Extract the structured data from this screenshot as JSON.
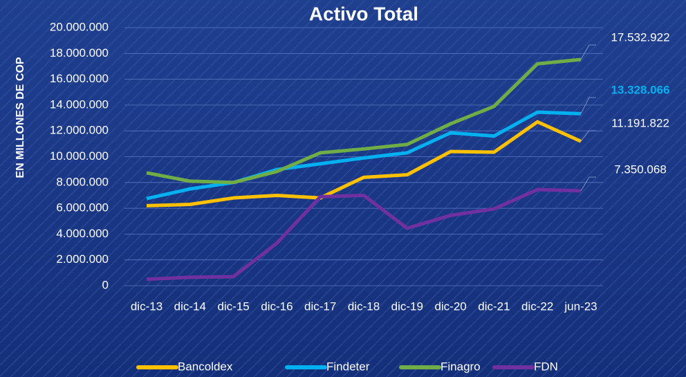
{
  "chart_data": {
    "type": "line",
    "title": "Activo Total",
    "y_label": "EN MILLONES DE COP",
    "categories": [
      "dic-13",
      "dic-14",
      "dic-15",
      "dic-16",
      "dic-17",
      "dic-18",
      "dic-19",
      "dic-20",
      "dic-21",
      "dic-22",
      "jun-23"
    ],
    "series": [
      {
        "name": "Bancoldex",
        "color": "#ffc000",
        "values": [
          6200000,
          6300000,
          6800000,
          7000000,
          6800000,
          8400000,
          8600000,
          10400000,
          10350000,
          12700000,
          11191822
        ],
        "value_labels": [
          null,
          null,
          null,
          null,
          null,
          null,
          null,
          null,
          null,
          null,
          "11.191.822"
        ]
      },
      {
        "name": "Findeter",
        "color": "#00b0f0",
        "label_color": "#00b0f0",
        "values": [
          6750000,
          7500000,
          8000000,
          9000000,
          9450000,
          9900000,
          10300000,
          11850000,
          11600000,
          13450000,
          13328066
        ],
        "value_labels": [
          null,
          null,
          null,
          null,
          null,
          null,
          null,
          null,
          null,
          null,
          "13.328.066"
        ]
      },
      {
        "name": "Finagro",
        "color": "#70ad47",
        "values": [
          8750000,
          8100000,
          8000000,
          8850000,
          10300000,
          10600000,
          10950000,
          12550000,
          13900000,
          17200000,
          17532922
        ],
        "value_labels": [
          null,
          null,
          null,
          null,
          null,
          null,
          null,
          null,
          null,
          null,
          "17.532.922"
        ]
      },
      {
        "name": "FDN",
        "color": "#7030a0",
        "values": [
          500000,
          650000,
          700000,
          3300000,
          6900000,
          7000000,
          4450000,
          5450000,
          5950000,
          7450000,
          7350068
        ],
        "value_labels": [
          null,
          null,
          null,
          null,
          null,
          null,
          null,
          null,
          null,
          null,
          "7.350.068"
        ]
      }
    ],
    "ylim": [
      0,
      20000000
    ],
    "yticks": [
      0,
      {
        "value": 2000000,
        "label": "2.000.000"
      },
      {
        "value": 4000000,
        "label": "4.000.000"
      },
      {
        "value": 6000000,
        "label": "6.000.000"
      },
      {
        "value": 8000000,
        "label": "8.000.000"
      },
      {
        "value": 10000000,
        "label": "10.000.000"
      },
      {
        "value": 12000000,
        "label": "12.000.000"
      },
      {
        "value": 14000000,
        "label": "14.000.000"
      },
      {
        "value": 16000000,
        "label": "16.000.000"
      },
      {
        "value": 18000000,
        "label": "18.000.000"
      },
      {
        "value": 20000000,
        "label": "20.000.000"
      }
    ],
    "grid": true,
    "legend": "bottom"
  }
}
